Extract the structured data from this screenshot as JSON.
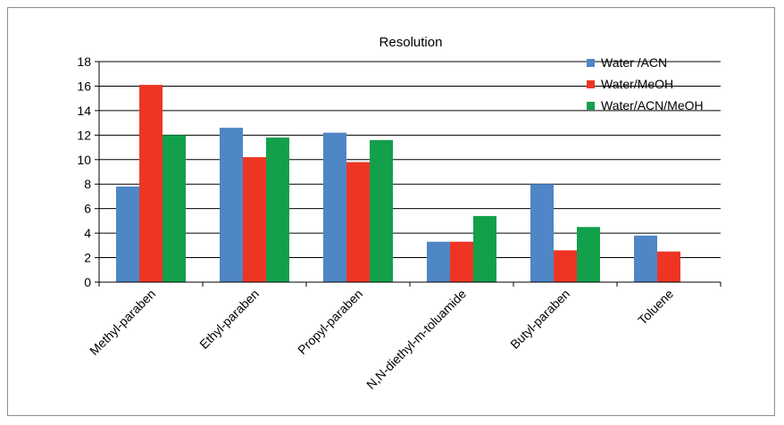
{
  "chart_data": {
    "type": "bar",
    "title": "Resolution",
    "xlabel": "",
    "ylabel": "",
    "ylim": [
      0,
      18
    ],
    "yticks": [
      0,
      2,
      4,
      6,
      8,
      10,
      12,
      14,
      16,
      18
    ],
    "grid": true,
    "legend_position": "top-right",
    "categories": [
      "Methyl-paraben",
      "Ethyl-paraben",
      "Propyl-paraben",
      "N,N-diethyl-m-toluamide",
      "Butyl-paraben",
      "Toluene"
    ],
    "series": [
      {
        "name": "Water /ACN",
        "color": "#4f86c6",
        "values": [
          7.8,
          12.6,
          12.2,
          3.3,
          8.0,
          3.8
        ]
      },
      {
        "name": "Water/MeOH",
        "color": "#ee3524",
        "values": [
          16.1,
          10.2,
          9.8,
          3.3,
          2.6,
          2.5
        ]
      },
      {
        "name": "Water/ACN/MeOH",
        "color": "#12a04b",
        "values": [
          12.0,
          11.8,
          11.6,
          5.4,
          4.5,
          null
        ]
      }
    ]
  }
}
